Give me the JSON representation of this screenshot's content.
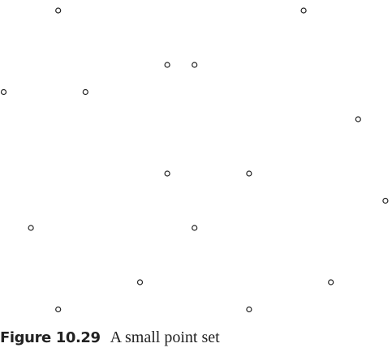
{
  "caption": {
    "label": "Figure 10.29",
    "text": "A small point set"
  },
  "point_style": {
    "stroke": "#222222",
    "fill": "#ffffff"
  },
  "chart_data": {
    "type": "scatter",
    "title": "",
    "xlabel": "",
    "ylabel": "",
    "grid": false,
    "axes_visible": false,
    "xlim": [
      0,
      14
    ],
    "ylim": [
      0,
      11
    ],
    "series": [
      {
        "marker": "hollow-circle",
        "points": [
          [
            2,
            11
          ],
          [
            11,
            11
          ],
          [
            6,
            9
          ],
          [
            7,
            9
          ],
          [
            0,
            8
          ],
          [
            3,
            8
          ],
          [
            13,
            7
          ],
          [
            6,
            5
          ],
          [
            9,
            5
          ],
          [
            14,
            4
          ],
          [
            1,
            3
          ],
          [
            7,
            3
          ],
          [
            5,
            1
          ],
          [
            12,
            1
          ],
          [
            2,
            0
          ],
          [
            9,
            0
          ]
        ]
      }
    ]
  }
}
